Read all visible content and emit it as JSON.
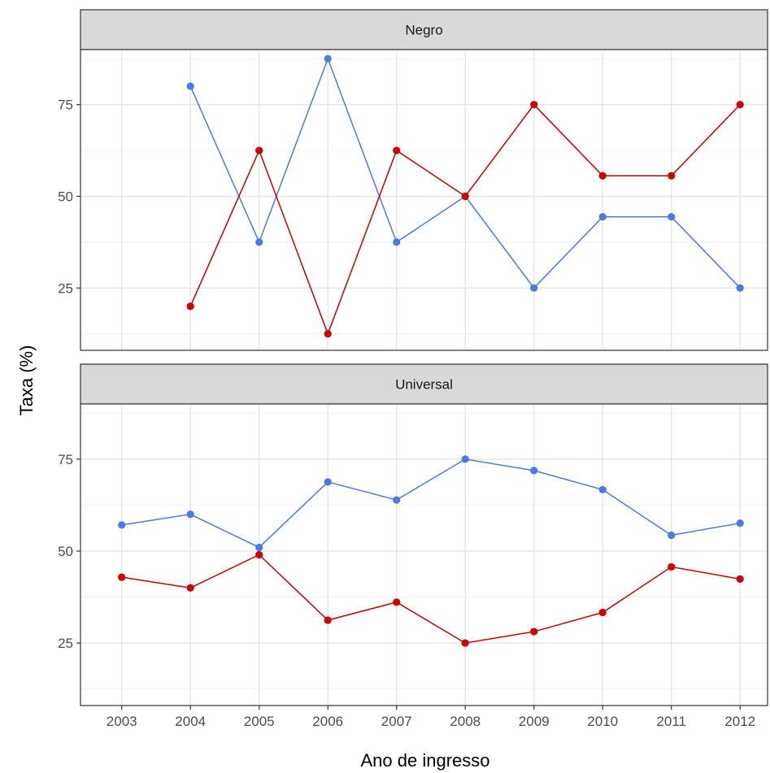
{
  "chart_data": {
    "type": "line",
    "xlabel": "Ano de ingresso",
    "ylabel": "Taxa (%)",
    "x": [
      2003,
      2004,
      2005,
      2006,
      2007,
      2008,
      2009,
      2010,
      2011,
      2012
    ],
    "xlim": [
      2002.4,
      2012.4
    ],
    "ylim": [
      8,
      90
    ],
    "yticks": [
      25,
      50,
      75
    ],
    "grid": true,
    "legend": "none",
    "colors": {
      "blue": "#4e79e4",
      "red": "#cc0000"
    },
    "panels": [
      {
        "label": "Negro",
        "series": [
          {
            "color": "#4e79e4",
            "values": [
              null,
              80,
              37.5,
              87.5,
              37.5,
              50,
              25,
              44.4,
              44.4,
              25
            ]
          },
          {
            "color": "#cc0000",
            "values": [
              null,
              20,
              62.5,
              12.5,
              62.5,
              50,
              75,
              55.6,
              55.6,
              75
            ]
          }
        ]
      },
      {
        "label": "Universal",
        "series": [
          {
            "color": "#4e79e4",
            "values": [
              57.1,
              60,
              51,
              68.8,
              63.9,
              75,
              71.9,
              66.7,
              54.3,
              57.6
            ]
          },
          {
            "color": "#cc0000",
            "values": [
              42.9,
              40,
              49,
              31.2,
              36.1,
              25,
              28.1,
              33.3,
              45.7,
              42.4
            ]
          }
        ]
      }
    ]
  }
}
